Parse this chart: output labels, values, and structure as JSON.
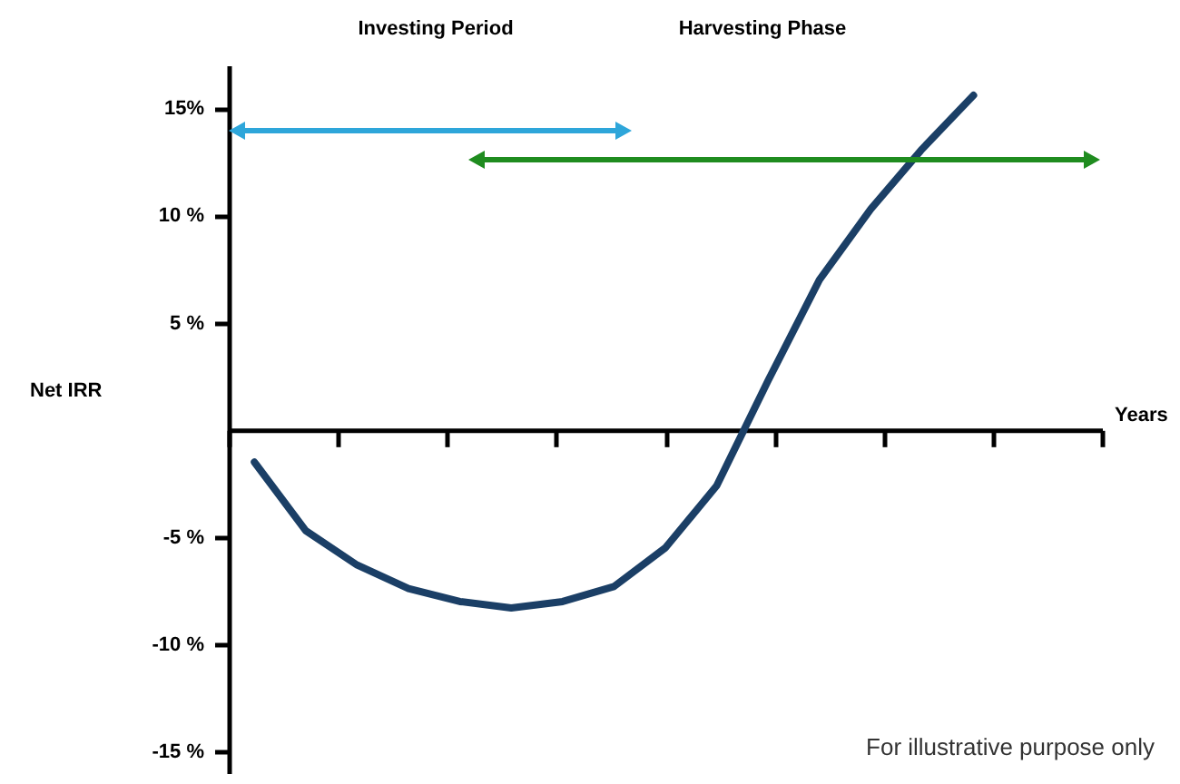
{
  "chart_data": {
    "type": "line",
    "ylabel": "Net IRR",
    "categories": [
      null,
      null,
      null,
      null,
      null,
      null,
      null,
      null,
      null,
      null,
      null,
      null,
      null,
      null,
      null,
      null,
      null
    ],
    "series": [
      {
        "color": "#1b3f66",
        "values": [
          -1.5,
          -4.7,
          -6.3,
          -7.4,
          -8.0,
          -8.3,
          -8.0,
          -7.3,
          -5.5,
          -2.6,
          2.3,
          7.0,
          10.3,
          13.1,
          15.6,
          null,
          null
        ]
      }
    ],
    "ylim": [
      -16,
      17
    ],
    "yticks": [
      {
        "value": 15,
        "label": "15%"
      },
      {
        "value": 10,
        "label": "10 %"
      },
      {
        "value": 5,
        "label": "5 %"
      },
      {
        "value": -5,
        "label": "-5 %"
      },
      {
        "value": -10,
        "label": "-10 %"
      },
      {
        "value": -15,
        "label": "-15 %"
      }
    ],
    "annotations": [
      "Investing Period",
      "Harvesting Phase",
      "Years",
      "For illustrative purpose only"
    ],
    "tick_labels": "y",
    "grid": false,
    "marker": "none",
    "line_style": "solid"
  }
}
